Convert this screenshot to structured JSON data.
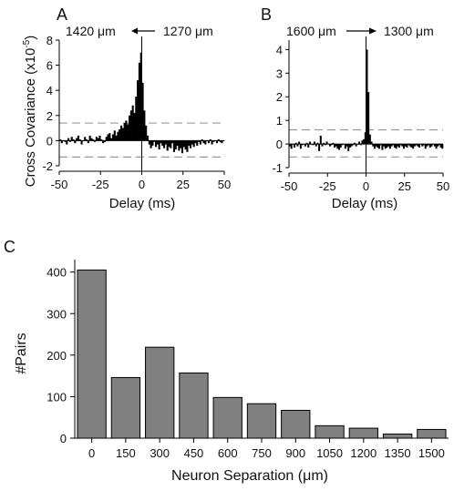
{
  "chart_data": [
    {
      "panel": "A",
      "type": "bar",
      "header": {
        "left": "1420 μm",
        "right": "1270 μm",
        "arrow": "left"
      },
      "ylabel_main": "Cross Covariance (x10",
      "ylabel_sup": "-5",
      "ylabel_close": ")",
      "xlabel": "Delay (ms)",
      "xlim": [
        -50,
        50
      ],
      "ylim": [
        -2,
        8
      ],
      "xticks": [
        -50,
        -25,
        0,
        25,
        50
      ],
      "yticks": [
        -2,
        0,
        2,
        4,
        6,
        8
      ],
      "significance_lines": [
        1.4,
        -1.3
      ],
      "x": [
        -50,
        -49,
        -48,
        -47,
        -46,
        -45,
        -44,
        -43,
        -42,
        -41,
        -40,
        -39,
        -38,
        -37,
        -36,
        -35,
        -34,
        -33,
        -32,
        -31,
        -30,
        -29,
        -28,
        -27,
        -26,
        -25,
        -24,
        -23,
        -22,
        -21,
        -20,
        -19,
        -18,
        -17,
        -16,
        -15,
        -14,
        -13,
        -12,
        -11,
        -10,
        -9,
        -8,
        -7,
        -6,
        -5,
        -4,
        -3,
        -2,
        -1,
        0,
        1,
        2,
        3,
        4,
        5,
        6,
        7,
        8,
        9,
        10,
        11,
        12,
        13,
        14,
        15,
        16,
        17,
        18,
        19,
        20,
        21,
        22,
        23,
        24,
        25,
        26,
        27,
        28,
        29,
        30,
        31,
        32,
        33,
        34,
        35,
        36,
        37,
        38,
        39,
        40,
        41,
        42,
        43,
        44,
        45,
        46,
        47,
        48,
        49
      ],
      "values": [
        0.1,
        -0.2,
        0.0,
        -0.1,
        -0.3,
        0.2,
        -0.1,
        0.3,
        0.1,
        -0.2,
        0.2,
        0.4,
        0.1,
        -0.3,
        0.0,
        0.3,
        0.1,
        -0.2,
        0.4,
        0.2,
        0.1,
        -0.1,
        0.3,
        0.2,
        0.4,
        0.1,
        -0.2,
        -0.1,
        0.3,
        0.5,
        0.6,
        0.2,
        0.5,
        0.8,
        0.4,
        0.7,
        0.9,
        1.2,
        1.0,
        1.4,
        1.6,
        1.3,
        2.0,
        2.4,
        2.8,
        2.2,
        3.5,
        4.8,
        6.2,
        7.0,
        4.6,
        2.4,
        1.2,
        0.4,
        -0.3,
        -0.6,
        -0.4,
        -0.1,
        -0.5,
        -0.3,
        -0.7,
        -0.2,
        -0.4,
        -0.6,
        -0.3,
        -0.8,
        -0.5,
        -0.6,
        -0.2,
        -0.9,
        -0.7,
        -0.4,
        -0.8,
        -0.6,
        -1.0,
        -0.5,
        -0.7,
        -0.9,
        -0.4,
        -0.6,
        -0.3,
        -0.5,
        -0.2,
        -0.4,
        -0.1,
        -0.3,
        0.1,
        -0.2,
        -0.3,
        0.0,
        -0.2,
        0.1,
        -0.3,
        -0.1,
        0.0,
        -0.2,
        0.1,
        -0.1,
        -0.2,
        0.0
      ]
    },
    {
      "panel": "B",
      "type": "bar",
      "header": {
        "left": "1600 μm",
        "right": "1300 μm",
        "arrow": "right"
      },
      "xlabel": "Delay (ms)",
      "xlim": [
        -50,
        50
      ],
      "ylim": [
        -1,
        4.4
      ],
      "xticks": [
        -50,
        -25,
        0,
        25,
        50
      ],
      "yticks": [
        -1,
        0,
        1,
        2,
        3,
        4
      ],
      "significance_lines": [
        0.6,
        -0.55
      ],
      "x": [
        -50,
        -49,
        -48,
        -47,
        -46,
        -45,
        -44,
        -43,
        -42,
        -41,
        -40,
        -39,
        -38,
        -37,
        -36,
        -35,
        -34,
        -33,
        -32,
        -31,
        -30,
        -29,
        -28,
        -27,
        -26,
        -25,
        -24,
        -23,
        -22,
        -21,
        -20,
        -19,
        -18,
        -17,
        -16,
        -15,
        -14,
        -13,
        -12,
        -11,
        -10,
        -9,
        -8,
        -7,
        -6,
        -5,
        -4,
        -3,
        -2,
        -1,
        0,
        1,
        2,
        3,
        4,
        5,
        6,
        7,
        8,
        9,
        10,
        11,
        12,
        13,
        14,
        15,
        16,
        17,
        18,
        19,
        20,
        21,
        22,
        23,
        24,
        25,
        26,
        27,
        28,
        29,
        30,
        31,
        32,
        33,
        34,
        35,
        36,
        37,
        38,
        39,
        40,
        41,
        42,
        43,
        44,
        45,
        46,
        47,
        48,
        49
      ],
      "values": [
        -0.1,
        -0.2,
        0.0,
        -0.15,
        0.05,
        -0.1,
        0.1,
        -0.2,
        -0.05,
        0.0,
        -0.1,
        0.05,
        -0.15,
        0.1,
        0.0,
        -0.05,
        0.1,
        -0.1,
        0.05,
        -0.3,
        0.35,
        -0.1,
        0.05,
        -0.05,
        0.1,
        0.0,
        -0.1,
        -0.05,
        0.05,
        -0.15,
        -0.1,
        -0.2,
        -0.25,
        -0.15,
        -0.05,
        0.0,
        -0.2,
        -0.1,
        -0.3,
        -0.15,
        -0.1,
        -0.05,
        0.05,
        -0.1,
        0.0,
        0.1,
        -0.05,
        0.15,
        0.2,
        0.5,
        4.0,
        2.2,
        0.4,
        0.1,
        -0.1,
        -0.2,
        -0.1,
        -0.15,
        -0.2,
        -0.05,
        -0.25,
        -0.1,
        -0.2,
        -0.15,
        -0.1,
        -0.2,
        -0.1,
        -0.05,
        -0.15,
        -0.2,
        -0.1,
        -0.15,
        -0.05,
        -0.1,
        -0.2,
        -0.1,
        -0.15,
        -0.05,
        -0.1,
        -0.15,
        -0.2,
        -0.1,
        -0.05,
        -0.1,
        -0.15,
        0.0,
        -0.1,
        -0.05,
        -0.2,
        -0.1,
        -0.05,
        -0.15,
        -0.1,
        0.0,
        -0.1,
        -0.2,
        -0.1,
        -0.05,
        -0.15,
        -0.2
      ]
    },
    {
      "panel": "C",
      "type": "bar",
      "ylabel": "#Pairs",
      "xlabel_main": "Neuron Separation (",
      "xlabel_unit": "μm",
      "xlabel_close": ")",
      "categories": [
        "0",
        "150",
        "300",
        "450",
        "600",
        "750",
        "900",
        "1050",
        "1200",
        "1350",
        "1500"
      ],
      "values": [
        405,
        146,
        219,
        157,
        98,
        83,
        67,
        30,
        24,
        10,
        21
      ],
      "ylim": [
        0,
        430
      ],
      "yticks": [
        0,
        100,
        200,
        300,
        400
      ],
      "bar_color": "#808080"
    }
  ]
}
